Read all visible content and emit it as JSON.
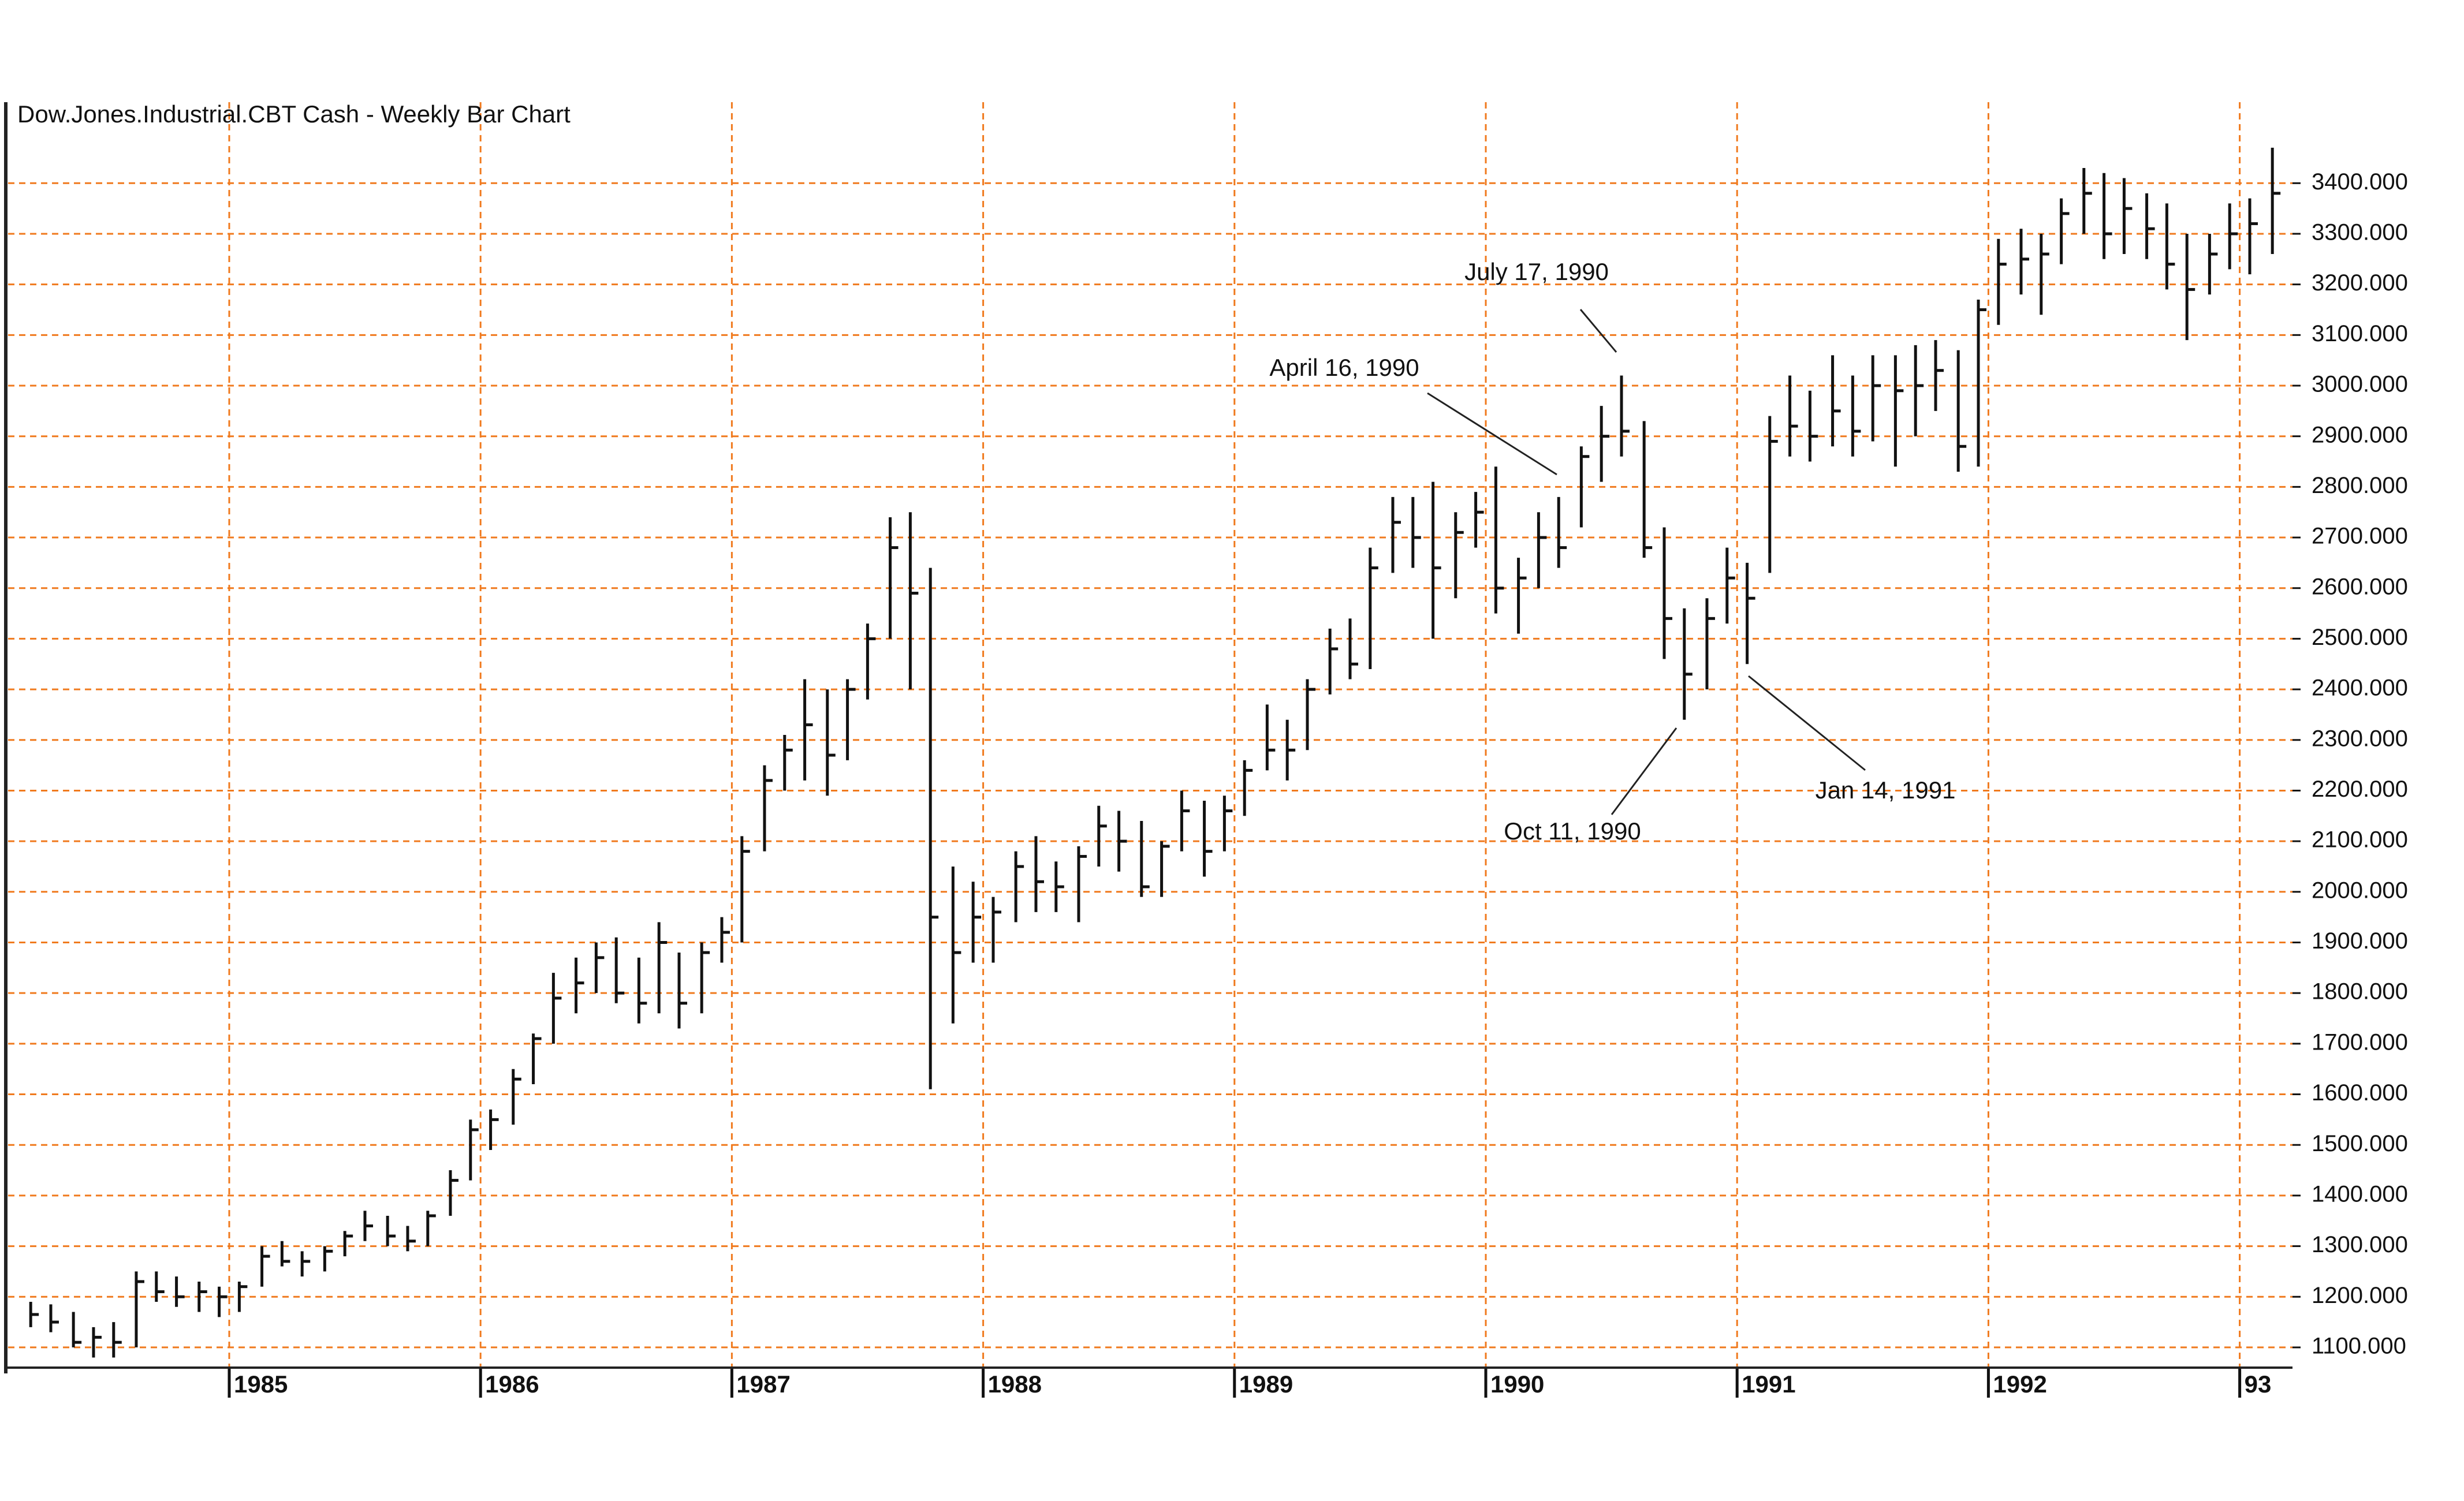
{
  "chart_data": {
    "type": "ohlc",
    "title": "Dow.Jones.Industrial.CBT Cash - Weekly Bar Chart",
    "color": "#111111",
    "grid": true,
    "grid_color": "#f07a1e",
    "xlim": [
      1984.12,
      1993.21
    ],
    "xticks": [
      1985,
      1986,
      1987,
      1988,
      1989,
      1990,
      1991,
      1992,
      {
        "value": 1993,
        "label": "93"
      }
    ],
    "ylim": [
      1060,
      3560
    ],
    "yticks": [
      {
        "value": 1100,
        "label": "1100.000"
      },
      {
        "value": 1200,
        "label": "1200.000"
      },
      {
        "value": 1300,
        "label": "1300.000"
      },
      {
        "value": 1400,
        "label": "1400.000"
      },
      {
        "value": 1500,
        "label": "1500.000"
      },
      {
        "value": 1600,
        "label": "1600.000"
      },
      {
        "value": 1700,
        "label": "1700.000"
      },
      {
        "value": 1800,
        "label": "1800.000"
      },
      {
        "value": 1900,
        "label": "1900.000"
      },
      {
        "value": 2000,
        "label": "2000.000"
      },
      {
        "value": 2100,
        "label": "2100.000"
      },
      {
        "value": 2200,
        "label": "2200.000"
      },
      {
        "value": 2300,
        "label": "2300.000"
      },
      {
        "value": 2400,
        "label": "2400.000"
      },
      {
        "value": 2500,
        "label": "2500.000"
      },
      {
        "value": 2600,
        "label": "2600.000"
      },
      {
        "value": 2700,
        "label": "2700.000"
      },
      {
        "value": 2800,
        "label": "2800.000"
      },
      {
        "value": 2900,
        "label": "2900.000"
      },
      {
        "value": 3000,
        "label": "3000.000"
      },
      {
        "value": 3100,
        "label": "3100.000"
      },
      {
        "value": 3200,
        "label": "3200.000"
      },
      {
        "value": 3300,
        "label": "3300.000"
      },
      {
        "value": 3400,
        "label": "3400.000"
      }
    ],
    "annotations": [
      {
        "text": "July 17, 1990"
      },
      {
        "text": "April 16, 1990"
      },
      {
        "text": "Oct 11, 1990"
      },
      {
        "text": "Jan 14, 1991"
      }
    ],
    "x": [
      1984.21,
      1984.29,
      1984.38,
      1984.46,
      1984.54,
      1984.63,
      1984.71,
      1984.79,
      1984.88,
      1984.96,
      1985.04,
      1985.13,
      1985.21,
      1985.29,
      1985.38,
      1985.46,
      1985.54,
      1985.63,
      1985.71,
      1985.79,
      1985.88,
      1985.96,
      1986.04,
      1986.13,
      1986.21,
      1986.29,
      1986.38,
      1986.46,
      1986.54,
      1986.63,
      1986.71,
      1986.79,
      1986.88,
      1986.96,
      1987.04,
      1987.13,
      1987.21,
      1987.29,
      1987.38,
      1987.46,
      1987.54,
      1987.63,
      1987.71,
      1987.79,
      1987.88,
      1987.96,
      1988.04,
      1988.13,
      1988.21,
      1988.29,
      1988.38,
      1988.46,
      1988.54,
      1988.63,
      1988.71,
      1988.79,
      1988.88,
      1988.96,
      1989.04,
      1989.13,
      1989.21,
      1989.29,
      1989.38,
      1989.46,
      1989.54,
      1989.63,
      1989.71,
      1989.79,
      1989.88,
      1989.96,
      1990.04,
      1990.13,
      1990.21,
      1990.29,
      1990.38,
      1990.46,
      1990.54,
      1990.63,
      1990.71,
      1990.79,
      1990.88,
      1990.96,
      1991.04,
      1991.13,
      1991.21,
      1991.29,
      1991.38,
      1991.46,
      1991.54,
      1991.63,
      1991.71,
      1991.79,
      1991.88,
      1991.96,
      1992.04,
      1992.13,
      1992.21,
      1992.29,
      1992.38,
      1992.46,
      1992.54,
      1992.63,
      1992.71,
      1992.79,
      1992.88,
      1992.96,
      1993.04,
      1993.13
    ],
    "high": [
      1190,
      1185,
      1170,
      1140,
      1150,
      1250,
      1250,
      1240,
      1230,
      1220,
      1230,
      1300,
      1310,
      1290,
      1300,
      1330,
      1370,
      1360,
      1340,
      1370,
      1450,
      1550,
      1570,
      1650,
      1720,
      1840,
      1870,
      1900,
      1910,
      1870,
      1940,
      1880,
      1900,
      1950,
      2110,
      2250,
      2310,
      2420,
      2400,
      2420,
      2530,
      2740,
      2750,
      2640,
      2050,
      2020,
      1990,
      2080,
      2110,
      2060,
      2090,
      2170,
      2160,
      2140,
      2100,
      2200,
      2180,
      2190,
      2260,
      2370,
      2340,
      2420,
      2520,
      2540,
      2680,
      2780,
      2780,
      2810,
      2750,
      2790,
      2840,
      2660,
      2750,
      2780,
      2880,
      2960,
      3020,
      2930,
      2720,
      2560,
      2580,
      2680,
      2650,
      2940,
      3020,
      2990,
      3060,
      3020,
      3060,
      3060,
      3080,
      3090,
      3070,
      3170,
      3290,
      3310,
      3300,
      3370,
      3430,
      3420,
      3410,
      3380,
      3360,
      3300,
      3300,
      3360,
      3370,
      3470
    ],
    "low": [
      1140,
      1130,
      1100,
      1080,
      1080,
      1100,
      1190,
      1180,
      1170,
      1160,
      1170,
      1220,
      1260,
      1240,
      1250,
      1280,
      1310,
      1300,
      1290,
      1300,
      1360,
      1430,
      1490,
      1540,
      1620,
      1700,
      1760,
      1800,
      1780,
      1740,
      1760,
      1730,
      1760,
      1860,
      1900,
      2080,
      2200,
      2220,
      2190,
      2260,
      2380,
      2500,
      2400,
      1610,
      1740,
      1860,
      1860,
      1940,
      1960,
      1960,
      1940,
      2050,
      2040,
      1990,
      1990,
      2080,
      2030,
      2080,
      2150,
      2240,
      2220,
      2280,
      2390,
      2420,
      2440,
      2630,
      2640,
      2500,
      2580,
      2680,
      2550,
      2510,
      2600,
      2640,
      2720,
      2810,
      2860,
      2660,
      2460,
      2340,
      2400,
      2530,
      2450,
      2630,
      2860,
      2850,
      2880,
      2860,
      2890,
      2840,
      2900,
      2950,
      2830,
      2840,
      3120,
      3180,
      3140,
      3240,
      3300,
      3250,
      3260,
      3250,
      3190,
      3090,
      3180,
      3230,
      3220,
      3260
    ],
    "close": [
      1165,
      1150,
      1110,
      1120,
      1110,
      1230,
      1210,
      1200,
      1210,
      1200,
      1220,
      1280,
      1270,
      1270,
      1290,
      1320,
      1340,
      1320,
      1310,
      1360,
      1430,
      1530,
      1550,
      1630,
      1710,
      1790,
      1820,
      1870,
      1800,
      1780,
      1900,
      1780,
      1880,
      1920,
      2080,
      2220,
      2280,
      2330,
      2270,
      2400,
      2500,
      2680,
      2590,
      1950,
      1880,
      1950,
      1960,
      2050,
      2020,
      2010,
      2070,
      2130,
      2100,
      2010,
      2090,
      2160,
      2080,
      2160,
      2240,
      2280,
      2280,
      2400,
      2480,
      2450,
      2640,
      2730,
      2700,
      2640,
      2710,
      2750,
      2600,
      2620,
      2700,
      2680,
      2860,
      2900,
      2910,
      2680,
      2540,
      2430,
      2540,
      2620,
      2580,
      2890,
      2920,
      2900,
      2950,
      2910,
      3000,
      2990,
      3000,
      3030,
      2880,
      3150,
      3240,
      3250,
      3260,
      3340,
      3380,
      3300,
      3350,
      3310,
      3240,
      3190,
      3260,
      3300,
      3320,
      3380
    ]
  }
}
